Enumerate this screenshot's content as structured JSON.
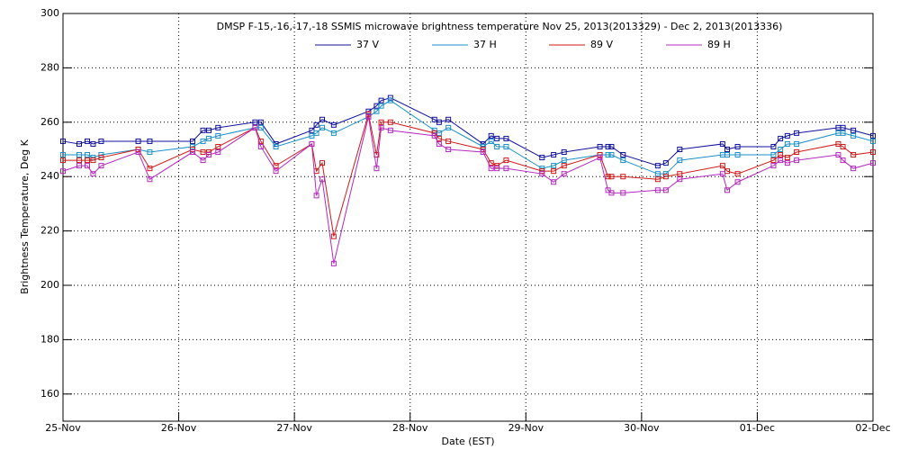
{
  "chart_data": {
    "type": "line",
    "title": "DMSP F-15,-16,-17,-18 SSMIS microwave brightness temperature Nov 25, 2013(2013329) - Dec  2, 2013(2013336)",
    "xlabel": "Date (EST)",
    "ylabel": "Brightness Temperature, Deg K",
    "x": [
      0,
      0.14,
      0.21,
      0.26,
      0.33,
      0.65,
      0.75,
      1.12,
      1.21,
      1.26,
      1.34,
      1.66,
      1.71,
      1.84,
      2.15,
      2.19,
      2.24,
      2.34,
      2.64,
      2.71,
      2.75,
      2.83,
      3.21,
      3.25,
      3.33,
      3.63,
      3.7,
      3.75,
      3.83,
      4.14,
      4.24,
      4.33,
      4.64,
      4.71,
      4.74,
      4.84,
      5.14,
      5.21,
      5.33,
      5.7,
      5.74,
      5.83,
      6.14,
      6.2,
      6.26,
      6.34,
      6.7,
      6.74,
      6.83,
      7
    ],
    "series": [
      {
        "name": "37 V",
        "color": "#10109c",
        "values": [
          253,
          252,
          253,
          252,
          253,
          253,
          253,
          253,
          257,
          257,
          258,
          260,
          260,
          252,
          257,
          259,
          261,
          259,
          264,
          266,
          268,
          269,
          261,
          260,
          261,
          252,
          255,
          254,
          254,
          247,
          248,
          249,
          251,
          251,
          251,
          248,
          244,
          245,
          250,
          252,
          250,
          251,
          251,
          254,
          255,
          256,
          258,
          258,
          257,
          255
        ]
      },
      {
        "name": "37 H",
        "color": "#1a8fc8",
        "values": [
          248,
          248,
          248,
          247,
          248,
          250,
          249,
          251,
          253,
          254,
          255,
          258,
          258,
          251,
          255,
          256,
          258,
          256,
          262,
          264,
          266,
          268,
          257,
          256,
          258,
          251,
          253,
          251,
          251,
          243,
          244,
          246,
          248,
          248,
          248,
          246,
          241,
          241,
          246,
          248,
          248,
          248,
          248,
          250,
          252,
          252,
          256,
          256,
          255,
          253
        ]
      },
      {
        "name": "89 V",
        "color": "#d01818",
        "values": [
          246,
          246,
          246,
          246,
          247,
          250,
          243,
          250,
          249,
          249,
          251,
          258,
          253,
          244,
          252,
          242,
          245,
          218,
          263,
          248,
          260,
          260,
          256,
          254,
          253,
          250,
          245,
          244,
          246,
          242,
          242,
          244,
          248,
          240,
          240,
          240,
          239,
          240,
          241,
          244,
          242,
          241,
          246,
          248,
          247,
          249,
          252,
          251,
          248,
          249
        ]
      },
      {
        "name": "89 H",
        "color": "#b428c0",
        "values": [
          242,
          244,
          244,
          241,
          244,
          249,
          239,
          249,
          246,
          248,
          249,
          258,
          251,
          242,
          252,
          233,
          239,
          208,
          262,
          243,
          258,
          257,
          255,
          252,
          250,
          249,
          243,
          243,
          243,
          241,
          238,
          241,
          247,
          235,
          234,
          234,
          235,
          235,
          239,
          241,
          235,
          238,
          244,
          246,
          245,
          246,
          248,
          246,
          243,
          245
        ]
      }
    ],
    "xlim": [
      0,
      7
    ],
    "xticks": [
      {
        "value": 0,
        "label": "25-Nov"
      },
      {
        "value": 1,
        "label": "26-Nov"
      },
      {
        "value": 2,
        "label": "27-Nov"
      },
      {
        "value": 3,
        "label": "28-Nov"
      },
      {
        "value": 4,
        "label": "29-Nov"
      },
      {
        "value": 5,
        "label": "30-Nov"
      },
      {
        "value": 6,
        "label": "01-Dec"
      },
      {
        "value": 7,
        "label": "02-Dec"
      }
    ],
    "ylim": [
      150,
      300
    ],
    "yticks": [
      160,
      180,
      200,
      220,
      240,
      260,
      280,
      300
    ],
    "grid": true
  }
}
